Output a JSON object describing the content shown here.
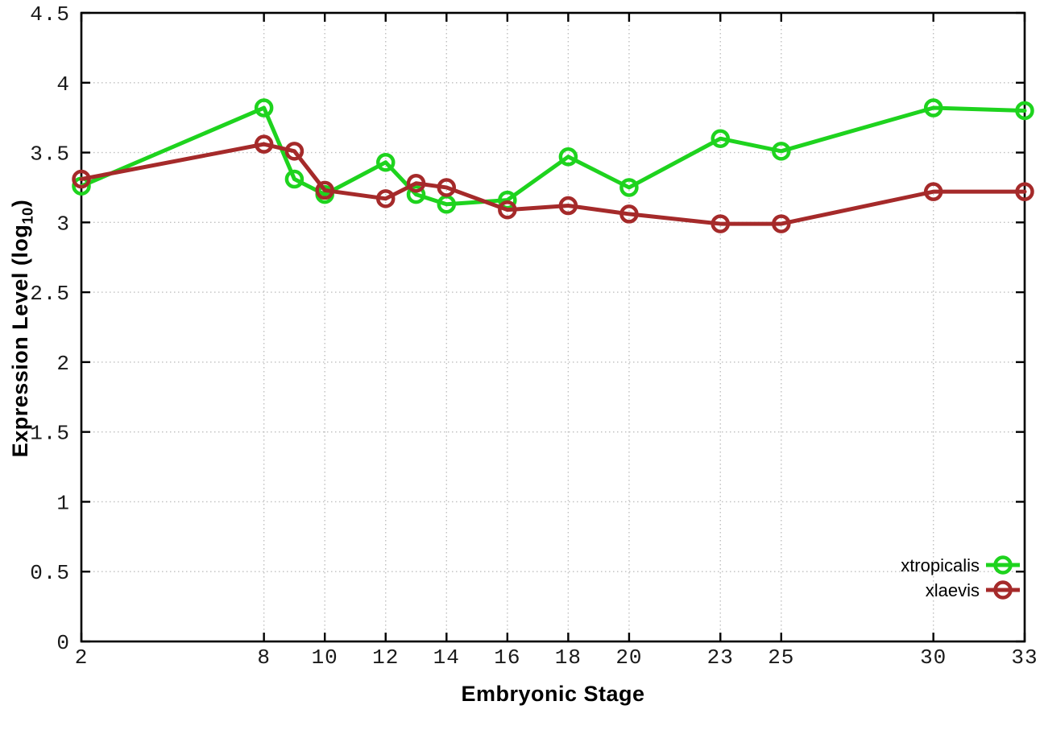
{
  "chart_data": {
    "type": "line",
    "title": "",
    "xlabel": "Embryonic Stage",
    "ylabel": {
      "pre": "Expression Level (log",
      "sub": "10",
      "post": ")"
    },
    "xlim": [
      2,
      33
    ],
    "ylim": [
      0,
      4.5
    ],
    "grid": true,
    "legend_position": "bottom-right",
    "x_ticks": [
      2,
      8,
      10,
      12,
      14,
      16,
      18,
      20,
      23,
      25,
      30,
      33
    ],
    "x_tick_labels": [
      "2",
      "8",
      "10",
      "12",
      "14",
      "16",
      "18",
      "20",
      "23",
      "25",
      "30",
      "33"
    ],
    "y_ticks": [
      0,
      0.5,
      1,
      1.5,
      2,
      2.5,
      3,
      3.5,
      4,
      4.5
    ],
    "y_tick_labels": [
      "0",
      "0.5",
      "1",
      "1.5",
      "2",
      "2.5",
      "3",
      "3.5",
      "4",
      "4.5"
    ],
    "series": [
      {
        "name": "xtropicalis",
        "color": "#1ed31e",
        "marker": "open-circle",
        "x": [
          2,
          8,
          9,
          10,
          12,
          13,
          14,
          16,
          18,
          20,
          23,
          25,
          30,
          33
        ],
        "y": [
          3.26,
          3.82,
          3.31,
          3.2,
          3.43,
          3.2,
          3.13,
          3.16,
          3.47,
          3.25,
          3.6,
          3.51,
          3.82,
          3.8
        ]
      },
      {
        "name": "xlaevis",
        "color": "#a52a2a",
        "marker": "open-circle",
        "x": [
          2,
          8,
          9,
          10,
          12,
          13,
          14,
          16,
          18,
          20,
          23,
          25,
          30,
          33
        ],
        "y": [
          3.31,
          3.56,
          3.51,
          3.23,
          3.17,
          3.28,
          3.25,
          3.09,
          3.12,
          3.06,
          2.99,
          2.99,
          3.22,
          3.22
        ]
      }
    ]
  },
  "colors": {
    "background": "#ffffff",
    "grid": "#bfbfbf",
    "axis": "#000000",
    "tick_text": "#1a1a1a"
  }
}
